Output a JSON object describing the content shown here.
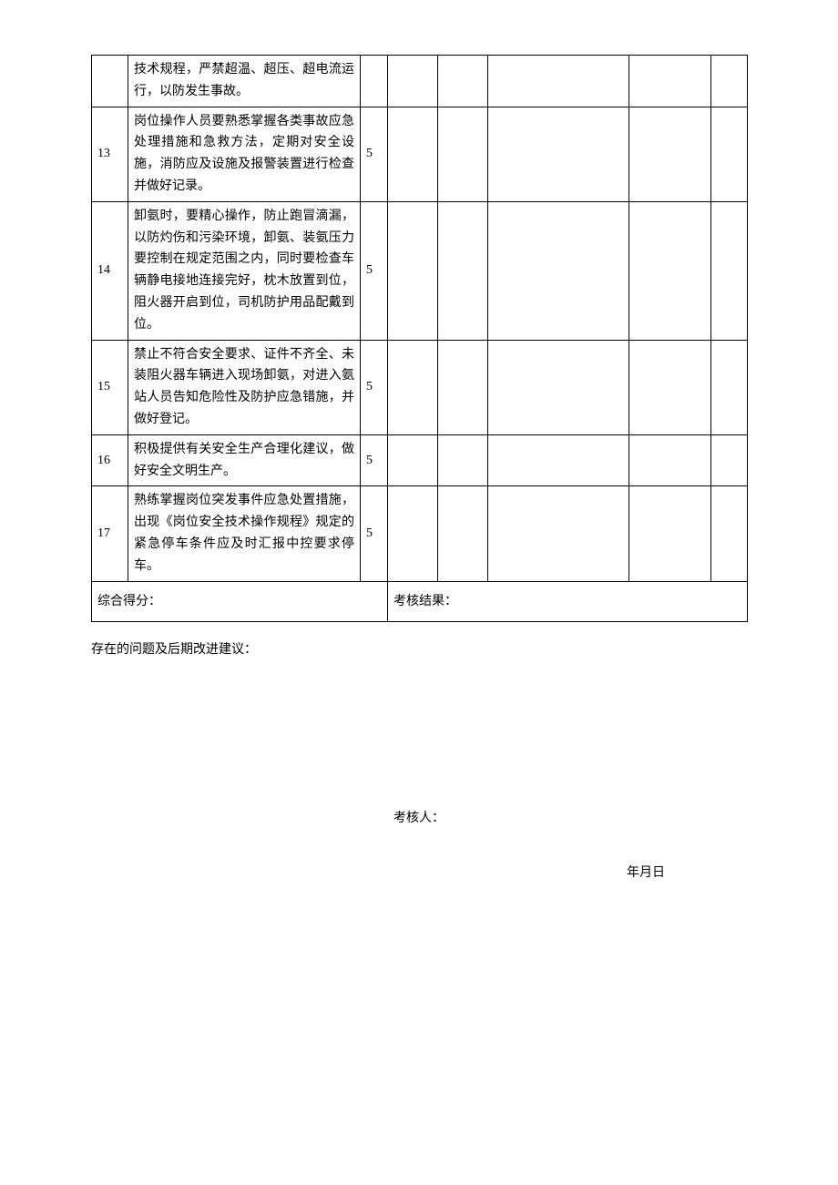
{
  "table": {
    "rows": [
      {
        "num": "",
        "desc": "技术规程，严禁超温、超压、超电流运行，以防发生事故。",
        "score": ""
      },
      {
        "num": "13",
        "desc": "岗位操作人员要熟悉掌握各类事故应急处理措施和急救方法，定期对安全设施，消防应及设施及报警装置进行检查并做好记录。",
        "score": "5"
      },
      {
        "num": "14",
        "desc": "卸氨时，要精心操作，防止跑冒滴漏，以防灼伤和污染环境，卸氨、装氨压力要控制在规定范围之内，同时要检查车辆静电接地连接完好，枕木放置到位，阻火器开启到位，司机防护用品配戴到位。",
        "score": "5"
      },
      {
        "num": "15",
        "desc": "禁止不符合安全要求、证件不齐全、未装阻火器车辆进入现场卸氨，对进入氨站人员告知危险性及防护应急错施，并做好登记。",
        "score": "5"
      },
      {
        "num": "16",
        "desc": "积极提供有关安全生产合理化建议，做好安全文明生产。",
        "score": "5"
      },
      {
        "num": "17",
        "desc": "熟练掌握岗位突发事件应急处置措施，出现《岗位安全技术操作规程》规定的紧急停车条件应及时汇报中控要求停车。",
        "score": "5"
      }
    ],
    "summary_left": "综合得分：",
    "summary_right": "考核结果："
  },
  "footer": {
    "problems_label": "存在的问题及后期改进建议：",
    "examiner_label": "考核人：",
    "date_label": "年月日"
  }
}
